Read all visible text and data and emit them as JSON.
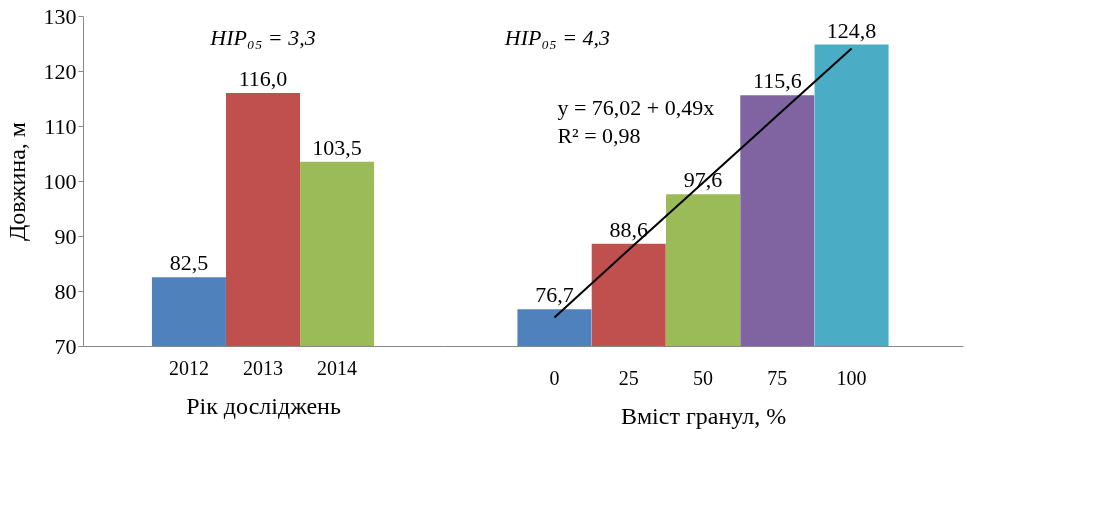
{
  "chart_data": [
    {
      "type": "bar",
      "categories": [
        "2012",
        "2013",
        "2014"
      ],
      "values": [
        82.5,
        116.0,
        103.5
      ],
      "value_labels": [
        "82,5",
        "116,0",
        "103,5"
      ],
      "colors": [
        "#4f81bd",
        "#c0504d",
        "#9bbb59"
      ],
      "ylim": [
        70,
        130
      ],
      "yticks": [
        70,
        80,
        90,
        100,
        110,
        120,
        130
      ],
      "ylabel": "Довжина, м",
      "xlabel": "Рік досліджень",
      "annotations": [
        "HIP₀₅ = 3,3"
      ],
      "grid": false
    },
    {
      "type": "bar",
      "categories": [
        "0",
        "25",
        "50",
        "75",
        "100"
      ],
      "values": [
        76.7,
        88.6,
        97.6,
        115.6,
        124.8
      ],
      "value_labels": [
        "76,7",
        "88,6",
        "97,6",
        "115,6",
        "124,8"
      ],
      "colors": [
        "#4f81bd",
        "#c0504d",
        "#9bbb59",
        "#8064a2",
        "#4bacc6"
      ],
      "series": [
        {
          "type": "line",
          "color": "#000000",
          "values": [
            75.2,
            87.5,
            99.7,
            111.9,
            124.1
          ]
        }
      ],
      "ylim": [
        70,
        130
      ],
      "yticks": [
        70,
        80,
        90,
        100,
        110,
        120,
        130
      ],
      "tick_labels": "x",
      "xlabel": "Вміст гранул, %",
      "annotations": [
        "HIP₀₅ = 4,3",
        "y = 76,02 + 0,49x",
        "R² = 0,98"
      ],
      "grid": false
    }
  ]
}
